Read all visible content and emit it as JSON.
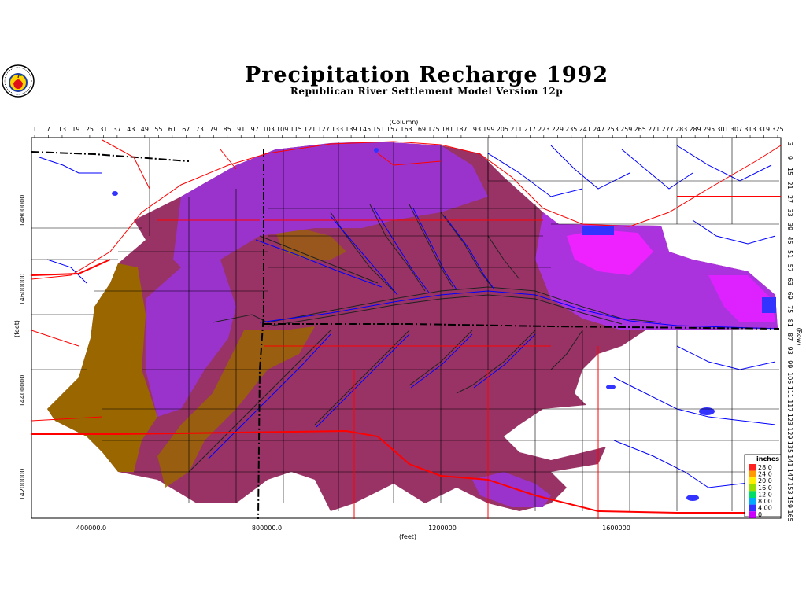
{
  "title": "Precipitation Recharge 1992",
  "subtitle": "Republican River Settlement Model Version 12p",
  "axes": {
    "top_label": "(Column)",
    "right_label": "(Row)",
    "left_label": "(feet)",
    "bottom_label": "(feet)",
    "column_ticks": [
      "1",
      "7",
      "13",
      "19",
      "25",
      "31",
      "37",
      "43",
      "49",
      "55",
      "61",
      "67",
      "73",
      "79",
      "85",
      "91",
      "97",
      "103",
      "109",
      "115",
      "121",
      "127",
      "133",
      "139",
      "145",
      "151",
      "157",
      "163",
      "169",
      "175",
      "181",
      "187",
      "193",
      "199",
      "205",
      "211",
      "217",
      "223",
      "229",
      "235",
      "241",
      "247",
      "253",
      "259",
      "265",
      "271",
      "277",
      "283",
      "289",
      "295",
      "301",
      "307",
      "313",
      "319",
      "325"
    ],
    "row_ticks": [
      "3",
      "9",
      "15",
      "21",
      "27",
      "33",
      "39",
      "45",
      "51",
      "57",
      "63",
      "69",
      "75",
      "81",
      "87",
      "93",
      "99",
      "105",
      "111",
      "117",
      "123",
      "129",
      "135",
      "141",
      "147",
      "153",
      "159",
      "165"
    ],
    "x_feet_ticks": [
      "400000.0",
      "800000.0",
      "1200000",
      "1600000"
    ],
    "y_feet_ticks": [
      "14800000",
      "14600000",
      "14400000",
      "14200000"
    ]
  },
  "legend": {
    "title": "inches",
    "labels": [
      "28.0",
      "24.0",
      "20.0",
      "16.0",
      "12.0",
      "8.00",
      "4.00",
      "0"
    ],
    "colors": [
      "#ff2020",
      "#ff9900",
      "#ffee00",
      "#99dd00",
      "#00dd66",
      "#00aaff",
      "#3333ff",
      "#cc00ff"
    ]
  },
  "colors": {
    "dark_recharge": "#993366",
    "brown_recharge": "#996600",
    "purple_recharge": "#9933cc",
    "magenta_recharge": "#ee22ff",
    "road": "#ff0000",
    "river": "#0000ff",
    "county": "#000000"
  }
}
